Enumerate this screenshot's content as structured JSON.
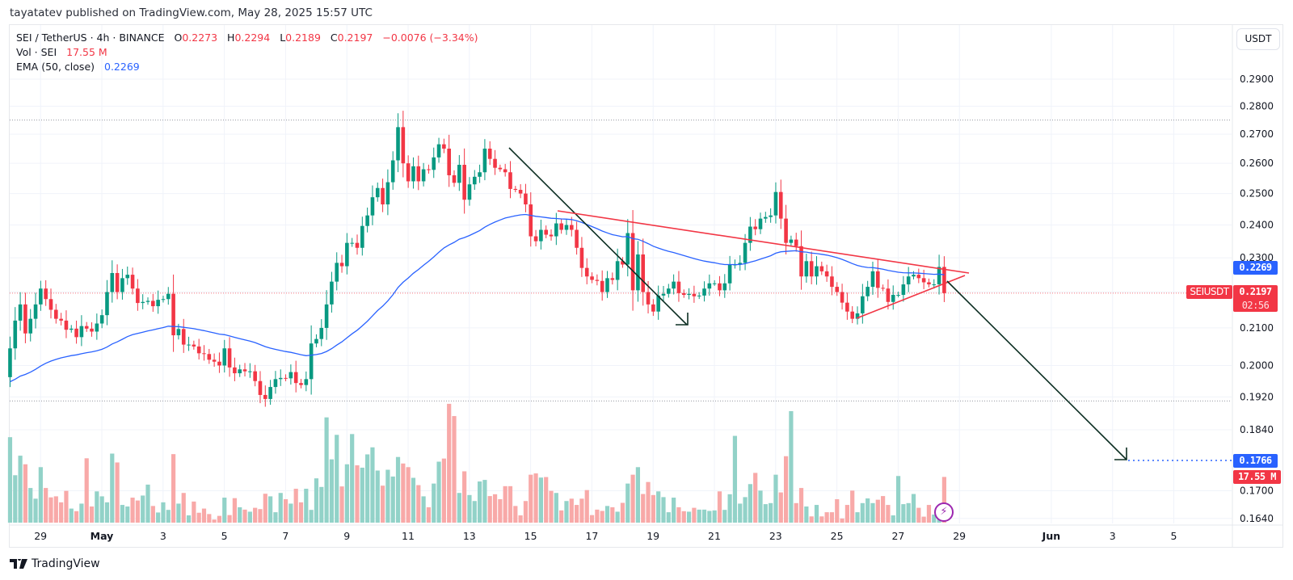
{
  "header": {
    "published": "tayatatev published on TradingView.com, May 28, 2025 15:57 UTC"
  },
  "legend": {
    "symbol": "SEI / TetherUS · 4h · BINANCE",
    "o_label": "O",
    "o": "0.2273",
    "h_label": "H",
    "h": "0.2294",
    "l_label": "L",
    "l": "0.2189",
    "c_label": "C",
    "c": "0.2197",
    "change": "−0.0076 (−3.34%)",
    "vol_label": "Vol · SEI",
    "vol": "17.55 M",
    "ema_label": "EMA (50, close)",
    "ema": "0.2269"
  },
  "currency_button": "USDT",
  "price_labels": {
    "ema": "0.2269",
    "symbol_tag": "SEIUSDT",
    "last": "0.2197",
    "countdown": "02:56",
    "target": "0.1766",
    "volume": "17.55 M"
  },
  "footer": {
    "brand": "TradingView"
  },
  "colors": {
    "up": "#089981",
    "down": "#f23645",
    "ema": "#2962ff",
    "trendline": "#f23645",
    "arrow": "#0c2e22",
    "target": "#2962ff"
  },
  "icons": {
    "logo": "tradingview-logo-icon",
    "bolt": "lightning-icon"
  },
  "chart_data": {
    "type": "candlestick",
    "interval": "4h",
    "scale": "log",
    "grid": true,
    "start": "2025-04-28T00:00",
    "ylim": [
      0.1625,
      0.296
    ],
    "y_ticks": [
      "0.2900",
      "0.2800",
      "0.2700",
      "0.2600",
      "0.2500",
      "0.2400",
      "0.2300",
      "0.2100",
      "0.2000",
      "0.1920",
      "0.1840",
      "0.1700",
      "0.1640"
    ],
    "x_ticks": [
      {
        "label": "29",
        "date": "2025-04-29"
      },
      {
        "label": "May",
        "date": "2025-05-01",
        "bold": true
      },
      {
        "label": "3",
        "date": "2025-05-03"
      },
      {
        "label": "5",
        "date": "2025-05-05"
      },
      {
        "label": "7",
        "date": "2025-05-07"
      },
      {
        "label": "9",
        "date": "2025-05-09"
      },
      {
        "label": "11",
        "date": "2025-05-11"
      },
      {
        "label": "13",
        "date": "2025-05-13"
      },
      {
        "label": "15",
        "date": "2025-05-15"
      },
      {
        "label": "17",
        "date": "2025-05-17"
      },
      {
        "label": "19",
        "date": "2025-05-19"
      },
      {
        "label": "21",
        "date": "2025-05-21"
      },
      {
        "label": "23",
        "date": "2025-05-23"
      },
      {
        "label": "25",
        "date": "2025-05-25"
      },
      {
        "label": "27",
        "date": "2025-05-27"
      },
      {
        "label": "29",
        "date": "2025-05-29"
      },
      {
        "label": "Jun",
        "date": "2025-06-01",
        "bold": true
      },
      {
        "label": "3",
        "date": "2025-06-03"
      },
      {
        "label": "5",
        "date": "2025-06-05"
      }
    ],
    "first_open": 0.197,
    "closes": [
      0.2045,
      0.212,
      0.2165,
      0.2085,
      0.2125,
      0.2165,
      0.221,
      0.218,
      0.215,
      0.2125,
      0.212,
      0.2095,
      0.2098,
      0.2075,
      0.2105,
      0.2098,
      0.209,
      0.2112,
      0.2135,
      0.22,
      0.2255,
      0.22,
      0.224,
      0.225,
      0.221,
      0.2169,
      0.2172,
      0.2175,
      0.216,
      0.2178,
      0.218,
      0.2195,
      0.208,
      0.2097,
      0.2055,
      0.2055,
      0.205,
      0.2032,
      0.203,
      0.2015,
      0.201,
      0.2,
      0.2045,
      0.1995,
      0.198,
      0.199,
      0.1985,
      0.1985,
      0.196,
      0.1925,
      0.1915,
      0.1945,
      0.1965,
      0.1968,
      0.1967,
      0.1983,
      0.1955,
      0.195,
      0.1965,
      0.2058,
      0.207,
      0.21,
      0.2165,
      0.223,
      0.2285,
      0.2275,
      0.2345,
      0.2345,
      0.233,
      0.2397,
      0.243,
      0.2488,
      0.2518,
      0.2465,
      0.2537,
      0.261,
      0.2725,
      0.26,
      0.254,
      0.259,
      0.254,
      0.258,
      0.2578,
      0.262,
      0.2665,
      0.265,
      0.256,
      0.2535,
      0.2595,
      0.248,
      0.253,
      0.2555,
      0.257,
      0.265,
      0.2615,
      0.2585,
      0.258,
      0.257,
      0.2515,
      0.2512,
      0.25,
      0.2465,
      0.2365,
      0.235,
      0.2385,
      0.237,
      0.2365,
      0.2405,
      0.2385,
      0.24,
      0.2385,
      0.233,
      0.227,
      0.2245,
      0.2235,
      0.2232,
      0.22,
      0.224,
      0.2235,
      0.229,
      0.228,
      0.2375,
      0.2205,
      0.231,
      0.22,
      0.2165,
      0.2145,
      0.219,
      0.2195,
      0.221,
      0.223,
      0.2197,
      0.2192,
      0.2195,
      0.2188,
      0.219,
      0.221,
      0.2225,
      0.2225,
      0.2205,
      0.2225,
      0.228,
      0.228,
      0.2285,
      0.2345,
      0.2395,
      0.2387,
      0.242,
      0.2425,
      0.243,
      0.2505,
      0.242,
      0.2345,
      0.2355,
      0.2335,
      0.2245,
      0.229,
      0.2245,
      0.2275,
      0.226,
      0.2245,
      0.2215,
      0.22,
      0.217,
      0.2145,
      0.2125,
      0.214,
      0.2188,
      0.2215,
      0.226,
      0.2212,
      0.221,
      0.2172,
      0.2192,
      0.2192,
      0.2222,
      0.2245,
      0.225,
      0.224,
      0.2228,
      0.2222,
      0.2222,
      0.2273,
      0.2197
    ],
    "volumes_m": [
      32.8,
      18.2,
      25.7,
      22.4,
      13.3,
      9.2,
      21.3,
      13.3,
      9.7,
      10.1,
      7.8,
      12.2,
      5.4,
      4.4,
      7.3,
      24.7,
      6.2,
      12.0,
      10.1,
      7.8,
      26.5,
      23.1,
      6.8,
      6.2,
      9.6,
      8.5,
      10.4,
      14.6,
      6.4,
      3.9,
      7.8,
      4.9,
      26.3,
      7.3,
      11.4,
      2.8,
      8.1,
      3.8,
      5.4,
      3.3,
      1.2,
      2.6,
      9.6,
      2.9,
      9.4,
      5.9,
      5.0,
      4.2,
      5.7,
      5.2,
      11.1,
      10.1,
      4.0,
      11.4,
      9.0,
      7.3,
      13.0,
      7.8,
      13.0,
      4.9,
      17.0,
      13.7,
      40.4,
      24.3,
      33.7,
      13.9,
      22.4,
      34.0,
      22.0,
      21.1,
      26.2,
      28.9,
      20.0,
      14.2,
      20.3,
      17.7,
      25.2,
      22.7,
      21.3,
      17.2,
      14.4,
      10.1,
      5.9,
      15.0,
      23.4,
      24.6,
      45.6,
      40.9,
      11.4,
      19.7,
      10.6,
      8.3,
      15.8,
      16.4,
      10.2,
      10.9,
      9.0,
      14.0,
      14.0,
      6.4,
      2.8,
      8.3,
      18.4,
      18.9,
      17.3,
      17.5,
      12.2,
      11.4,
      4.7,
      8.3,
      9.2,
      6.8,
      9.2,
      12.5,
      2.9,
      5.0,
      4.5,
      6.4,
      5.9,
      4.2,
      7.6,
      15.0,
      18.4,
      21.3,
      11.0,
      15.6,
      10.6,
      12.0,
      9.8,
      4.0,
      9.6,
      5.9,
      4.4,
      4.2,
      5.7,
      5.0,
      5.0,
      4.5,
      4.7,
      12.0,
      4.9,
      10.9,
      33.3,
      7.3,
      9.8,
      14.8,
      19.1,
      12.3,
      7.1,
      7.5,
      18.4,
      11.6,
      25.5,
      42.8,
      7.5,
      13.3,
      6.2,
      2.4,
      6.8,
      2.4,
      4.0,
      4.0,
      9.0,
      1.6,
      6.8,
      12.3,
      4.0,
      7.5,
      9.3,
      7.5,
      8.8,
      10.2,
      6.8,
      2.8,
      17.9,
      7.1,
      7.5,
      11.0,
      5.7,
      2.3,
      6.8,
      3.1,
      6.4,
      17.55
    ],
    "ema_period": 50,
    "ema_last": 0.2269,
    "horizontal_levels": [
      0.275,
      0.191
    ],
    "target_price": 0.1766,
    "last_price": 0.2197
  }
}
